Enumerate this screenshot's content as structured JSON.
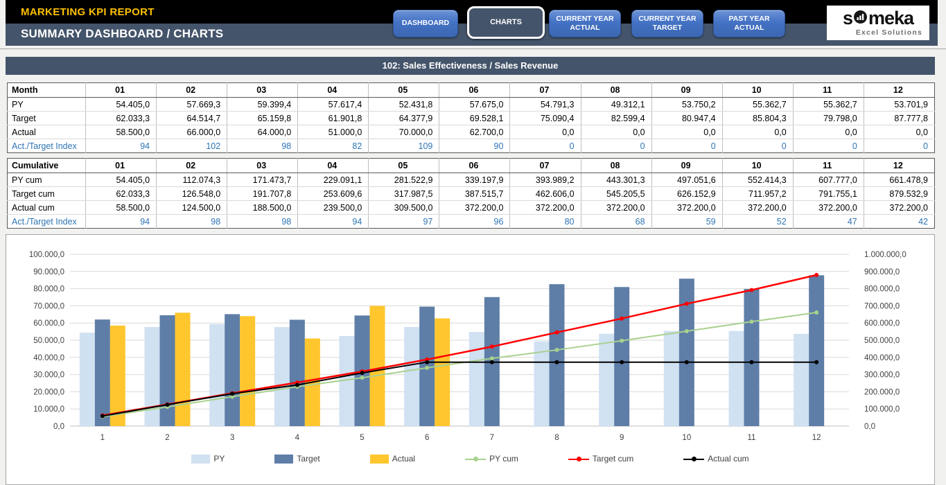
{
  "header": {
    "title": "MARKETING KPI REPORT",
    "subtitle": "SUMMARY DASHBOARD / CHARTS",
    "nav": [
      {
        "label": "DASHBOARD",
        "active": false
      },
      {
        "label": "CHARTS",
        "active": true
      },
      {
        "label": "CURRENT YEAR ACTUAL",
        "active": false
      },
      {
        "label": "CURRENT YEAR TARGET",
        "active": false
      },
      {
        "label": "PAST YEAR ACTUAL",
        "active": false
      }
    ],
    "logo": {
      "brand_s": "s",
      "brand_rest": "meka",
      "tagline": "Excel Solutions"
    }
  },
  "section": {
    "title": "102: Sales Effectiveness / Sales Revenue"
  },
  "monthly_table": {
    "header_label": "Month",
    "columns": [
      "01",
      "02",
      "03",
      "04",
      "05",
      "06",
      "07",
      "08",
      "09",
      "10",
      "11",
      "12"
    ],
    "rows": [
      {
        "label": "PY",
        "type": "normal",
        "values": [
          "54.405,0",
          "57.669,3",
          "59.399,4",
          "57.617,4",
          "52.431,8",
          "57.675,0",
          "54.791,3",
          "49.312,1",
          "53.750,2",
          "55.362,7",
          "55.362,7",
          "53.701,9"
        ]
      },
      {
        "label": "Target",
        "type": "normal",
        "values": [
          "62.033,3",
          "64.514,7",
          "65.159,8",
          "61.901,8",
          "64.377,9",
          "69.528,1",
          "75.090,4",
          "82.599,4",
          "80.947,4",
          "85.804,3",
          "79.798,0",
          "87.777,8"
        ]
      },
      {
        "label": "Actual",
        "type": "normal",
        "values": [
          "58.500,0",
          "66.000,0",
          "64.000,0",
          "51.000,0",
          "70.000,0",
          "62.700,0",
          "0,0",
          "0,0",
          "0,0",
          "0,0",
          "0,0",
          "0,0"
        ]
      },
      {
        "label": "Act./Target Index",
        "type": "index",
        "values": [
          "94",
          "102",
          "98",
          "82",
          "109",
          "90",
          "0",
          "0",
          "0",
          "0",
          "0",
          "0"
        ]
      }
    ]
  },
  "cumulative_table": {
    "header_label": "Cumulative",
    "columns": [
      "01",
      "02",
      "03",
      "04",
      "05",
      "06",
      "07",
      "08",
      "09",
      "10",
      "11",
      "12"
    ],
    "rows": [
      {
        "label": "PY cum",
        "type": "normal",
        "values": [
          "54.405,0",
          "112.074,3",
          "171.473,7",
          "229.091,1",
          "281.522,9",
          "339.197,9",
          "393.989,2",
          "443.301,3",
          "497.051,6",
          "552.414,3",
          "607.777,0",
          "661.478,9"
        ]
      },
      {
        "label": "Target cum",
        "type": "normal",
        "values": [
          "62.033,3",
          "126.548,0",
          "191.707,8",
          "253.609,6",
          "317.987,5",
          "387.515,7",
          "462.606,0",
          "545.205,5",
          "626.152,9",
          "711.957,2",
          "791.755,1",
          "879.532,9"
        ]
      },
      {
        "label": "Actual cum",
        "type": "normal",
        "values": [
          "58.500,0",
          "124.500,0",
          "188.500,0",
          "239.500,0",
          "309.500,0",
          "372.200,0",
          "372.200,0",
          "372.200,0",
          "372.200,0",
          "372.200,0",
          "372.200,0",
          "372.200,0"
        ]
      },
      {
        "label": "Act./Target Index",
        "type": "index",
        "values": [
          "94",
          "98",
          "98",
          "94",
          "97",
          "96",
          "80",
          "68",
          "59",
          "52",
          "47",
          "42"
        ]
      }
    ]
  },
  "chart_data": {
    "type": "combo",
    "title": "102: Sales Effectiveness / Sales Revenue",
    "categories": [
      "1",
      "2",
      "3",
      "4",
      "5",
      "6",
      "7",
      "8",
      "9",
      "10",
      "11",
      "12"
    ],
    "bar_series": [
      {
        "name": "PY",
        "color": "#D0E1F2",
        "values": [
          54405.0,
          57669.3,
          59399.4,
          57617.4,
          52431.8,
          57675.0,
          54791.3,
          49312.1,
          53750.2,
          55362.7,
          55362.7,
          53701.9
        ]
      },
      {
        "name": "Target",
        "color": "#5E7EA8",
        "values": [
          62033.3,
          64514.7,
          65159.8,
          61901.8,
          64377.9,
          69528.1,
          75090.4,
          82599.4,
          80947.4,
          85804.3,
          79798.0,
          87777.8
        ]
      },
      {
        "name": "Actual",
        "color": "#FFC62E",
        "values": [
          58500.0,
          66000.0,
          64000.0,
          51000.0,
          70000.0,
          62700.0,
          0,
          0,
          0,
          0,
          0,
          0
        ]
      }
    ],
    "line_series": [
      {
        "name": "PY cum",
        "color": "#A9D18E",
        "values": [
          54405.0,
          112074.3,
          171473.7,
          229091.1,
          281522.9,
          339197.9,
          393989.2,
          443301.3,
          497051.6,
          552414.3,
          607777.0,
          661478.9
        ]
      },
      {
        "name": "Target cum",
        "color": "#FF0000",
        "values": [
          62033.3,
          126548.0,
          191707.8,
          253609.6,
          317987.5,
          387515.7,
          462606.0,
          545205.5,
          626152.9,
          711957.2,
          791755.1,
          879532.9
        ]
      },
      {
        "name": "Actual cum",
        "color": "#000000",
        "values": [
          58500.0,
          124500.0,
          188500.0,
          239500.0,
          309500.0,
          372200.0,
          372200.0,
          372200.0,
          372200.0,
          372200.0,
          372200.0,
          372200.0
        ]
      }
    ],
    "left_axis": {
      "min": 0,
      "max": 100000,
      "step": 10000,
      "labels": [
        "0,0",
        "10.000,0",
        "20.000,0",
        "30.000,0",
        "40.000,0",
        "50.000,0",
        "60.000,0",
        "70.000,0",
        "80.000,0",
        "90.000,0",
        "100.000,0"
      ]
    },
    "right_axis": {
      "min": 0,
      "max": 1000000,
      "step": 100000,
      "labels": [
        "0,0",
        "100.000,0",
        "200.000,0",
        "300.000,0",
        "400.000,0",
        "500.000,0",
        "600.000,0",
        "700.000,0",
        "800.000,0",
        "900.000,0",
        "1.000.000,0"
      ]
    },
    "grid": true,
    "legend_position": "bottom"
  },
  "colors": {
    "header_black": "#000000",
    "header_slate": "#44546A",
    "accent_yellow": "#FFC000",
    "button_blue": "#4472C4",
    "index_blue": "#2E74B5",
    "gridline": "#D9D9D9"
  }
}
